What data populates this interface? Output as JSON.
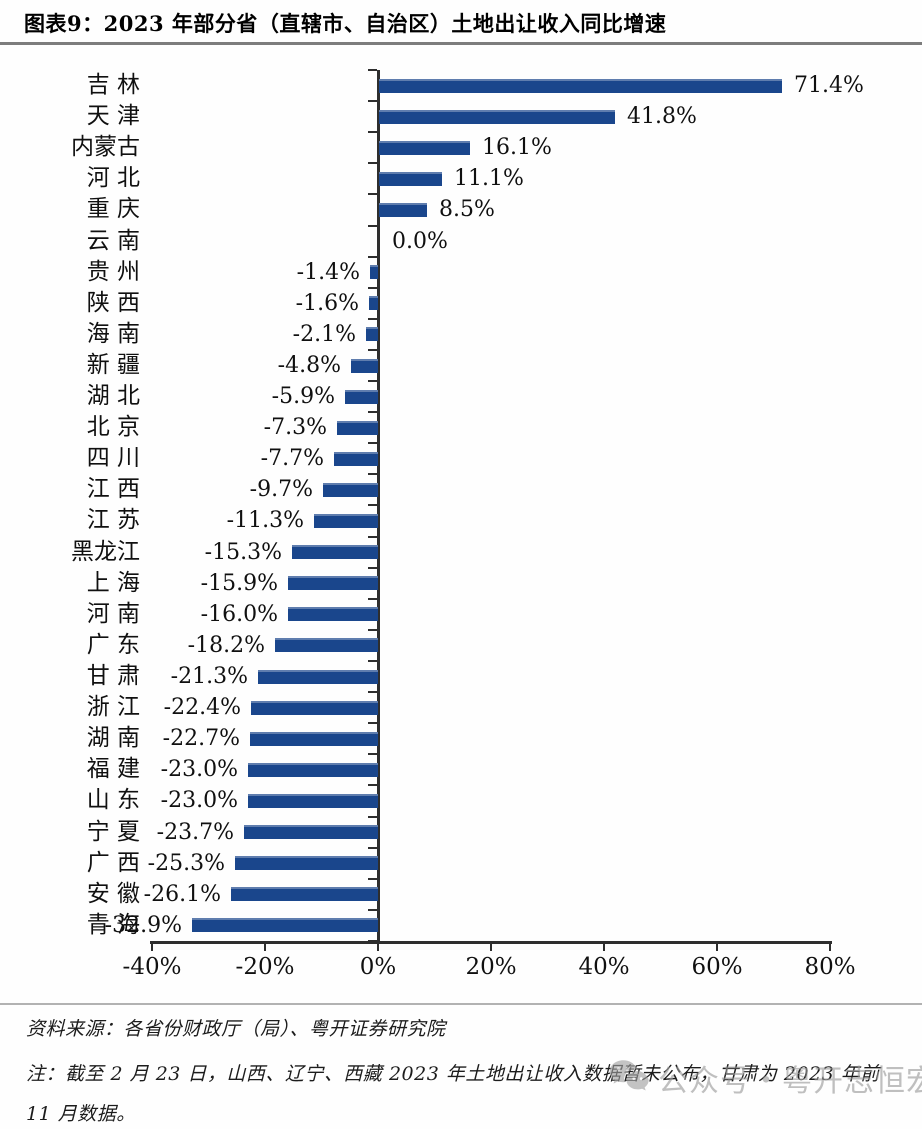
{
  "header": {
    "title": "图表9：2023 年部分省（直辖市、自治区）土地出让收入同比增速"
  },
  "chart_data": {
    "type": "bar",
    "orientation": "horizontal",
    "title": "图表9：2023 年部分省（直辖市、自治区）土地出让收入同比增速",
    "categories": [
      "吉 林",
      "天 津",
      "内蒙古",
      "河 北",
      "重 庆",
      "云 南",
      "贵 州",
      "陕 西",
      "海 南",
      "新 疆",
      "湖 北",
      "北 京",
      "四 川",
      "江 西",
      "江 苏",
      "黑龙江",
      "上 海",
      "河 南",
      "广 东",
      "甘 肃",
      "浙 江",
      "湖 南",
      "福 建",
      "山 东",
      "宁 夏",
      "广 西",
      "安 徽",
      "青 海"
    ],
    "values": [
      71.4,
      41.8,
      16.1,
      11.1,
      8.5,
      0.0,
      -1.4,
      -1.6,
      -2.1,
      -4.8,
      -5.9,
      -7.3,
      -7.7,
      -9.7,
      -11.3,
      -15.3,
      -15.9,
      -16.0,
      -18.2,
      -21.3,
      -22.4,
      -22.7,
      -23.0,
      -23.0,
      -23.7,
      -25.3,
      -26.1,
      -32.9
    ],
    "value_labels": [
      "71.4%",
      "41.8%",
      "16.1%",
      "11.1%",
      "8.5%",
      "0.0%",
      "-1.4%",
      "-1.6%",
      "-2.1%",
      "-4.8%",
      "-5.9%",
      "-7.3%",
      "-7.7%",
      "-9.7%",
      "-11.3%",
      "-15.3%",
      "-15.9%",
      "-16.0%",
      "-18.2%",
      "-21.3%",
      "-22.4%",
      "-22.7%",
      "-23.0%",
      "-23.0%",
      "-23.7%",
      "-25.3%",
      "-26.1%",
      "-32.9%"
    ],
    "x_ticks": [
      "-40%",
      "-20%",
      "0%",
      "20%",
      "40%",
      "60%",
      "80%"
    ],
    "x_tick_values": [
      -40,
      -20,
      0,
      20,
      40,
      60,
      80
    ],
    "xlim": [
      -40,
      80
    ],
    "xlabel": "",
    "ylabel": "",
    "grid": false,
    "legend": "none",
    "bar_color": "#1a468c"
  },
  "footer": {
    "source": "资料来源：各省份财政厅（局）、粤开证券研究院",
    "note": "注：截至 2 月 23 日，山西、辽宁、西藏 2023 年土地出让收入数据暂未公布，甘肃为 2023 年前 11 月数据。",
    "watermark": "公众号・粤开志恒宏观"
  }
}
